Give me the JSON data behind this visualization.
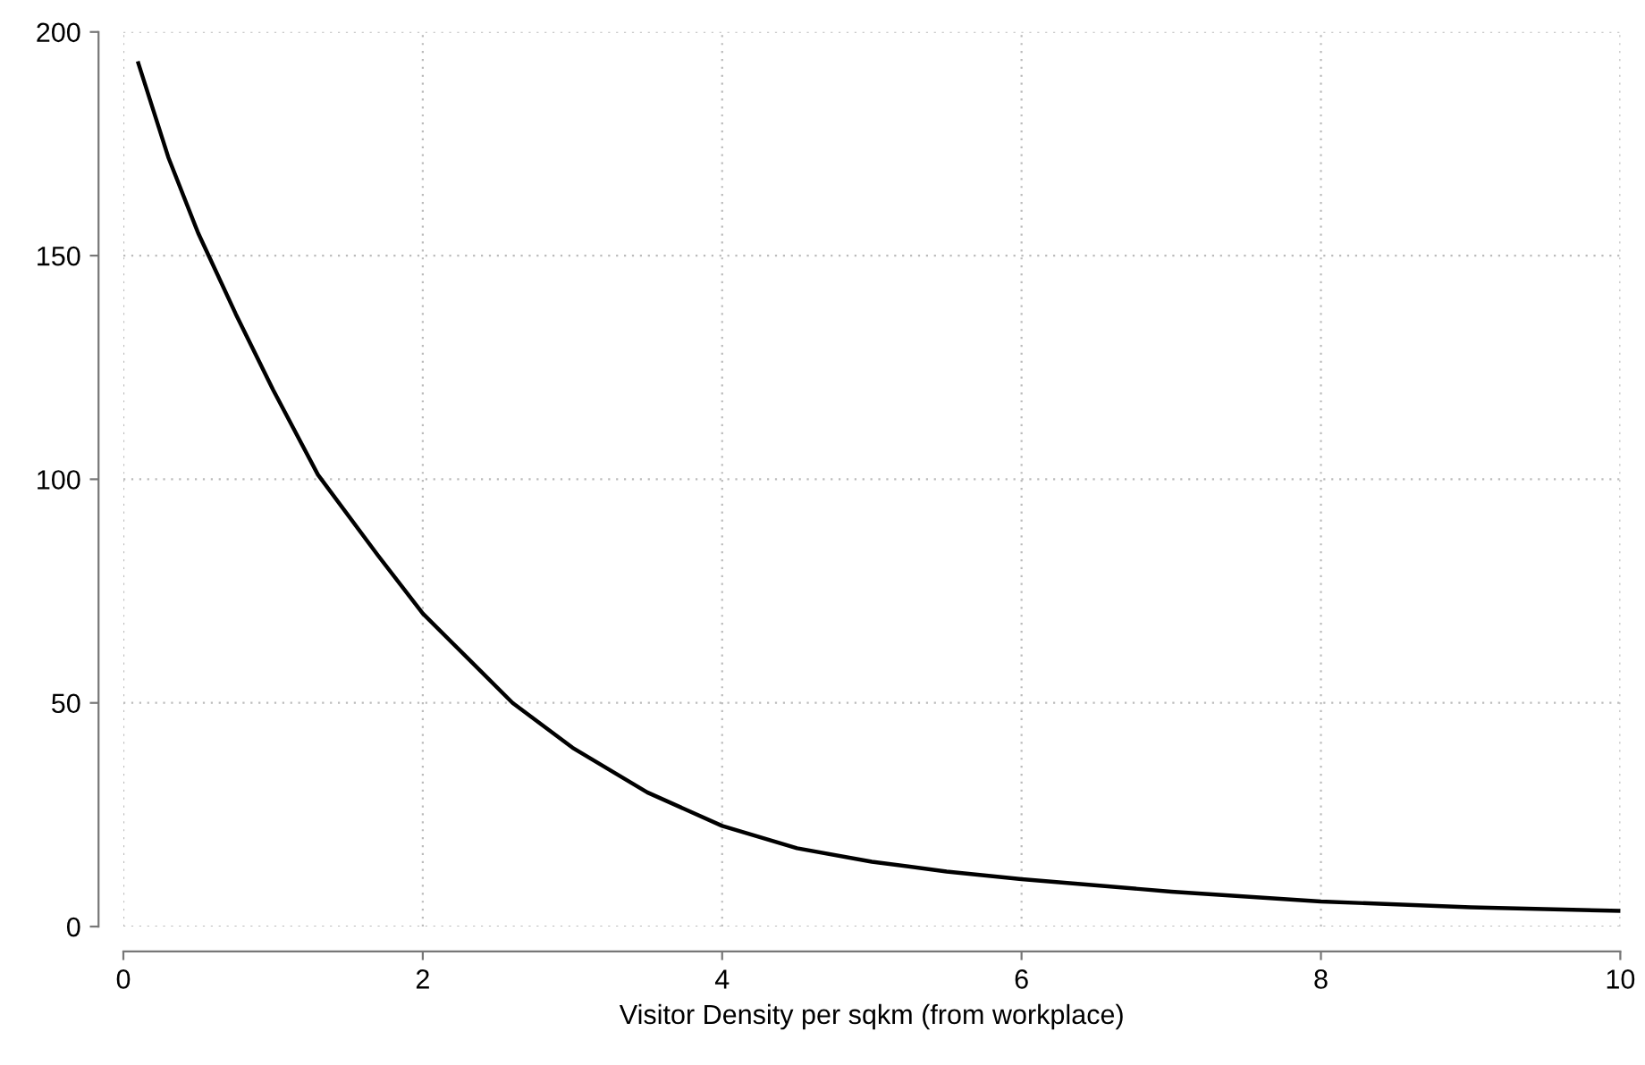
{
  "chart_data": {
    "type": "line",
    "xlabel": "Visitor Density per sqkm (from workplace)",
    "x": [
      0.1,
      0.3,
      0.5,
      0.75,
      1.0,
      1.3,
      1.7,
      2.0,
      2.3,
      2.6,
      3.0,
      3.5,
      4.0,
      4.5,
      5.0,
      5.5,
      6.0,
      7.0,
      8.0,
      9.0,
      10.0
    ],
    "series": [
      {
        "color": "#000000",
        "values": [
          193,
          172,
          155,
          137,
          120,
          101,
          83,
          70,
          60,
          50,
          40,
          30,
          22.5,
          17.5,
          14.5,
          12.3,
          10.6,
          7.8,
          5.6,
          4.3,
          3.5
        ]
      }
    ],
    "xlim": [
      0,
      10
    ],
    "ylim": [
      0,
      200
    ],
    "xticks": [
      0,
      2,
      4,
      6,
      8,
      10
    ],
    "yticks": [
      0,
      50,
      100,
      150,
      200
    ],
    "grid": true,
    "marker": "none",
    "line_style": "solid",
    "legend": false
  }
}
